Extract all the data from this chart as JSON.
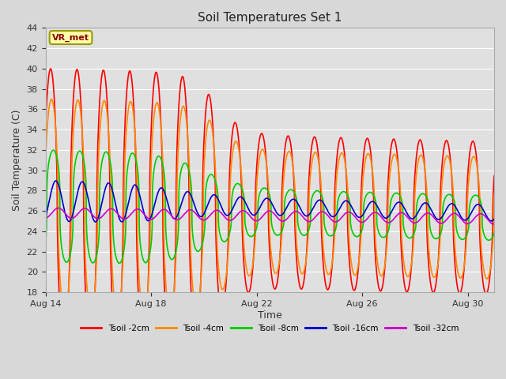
{
  "title": "Soil Temperatures Set 1",
  "xlabel": "Time",
  "ylabel": "Soil Temperature (C)",
  "ylim": [
    18,
    44
  ],
  "yticks": [
    18,
    20,
    22,
    24,
    26,
    28,
    30,
    32,
    34,
    36,
    38,
    40,
    42,
    44
  ],
  "xlim": [
    14,
    31
  ],
  "x_start_day": 14,
  "x_end_day": 31,
  "num_points": 1700,
  "background_color": "#d8d8d8",
  "plot_bg_color": "#e0e0e0",
  "grid_color": "#ffffff",
  "annotation_text": "VR_met",
  "annotation_box_color": "#ffffaa",
  "annotation_border_color": "#999900",
  "annotation_text_color": "#880000",
  "legend_entries": [
    "Tsoil -2cm",
    "Tsoil -4cm",
    "Tsoil -8cm",
    "Tsoil -16cm",
    "Tsoil -32cm"
  ],
  "line_colors": [
    "#ff0000",
    "#ff8800",
    "#00cc00",
    "#0000cc",
    "#cc00cc"
  ],
  "line_widths": [
    1.2,
    1.2,
    1.2,
    1.2,
    1.2
  ],
  "xtick_labels": [
    "Aug 14",
    "Aug 18",
    "Aug 22",
    "Aug 26",
    "Aug 30"
  ],
  "xtick_positions": [
    14,
    18,
    22,
    26,
    30
  ]
}
